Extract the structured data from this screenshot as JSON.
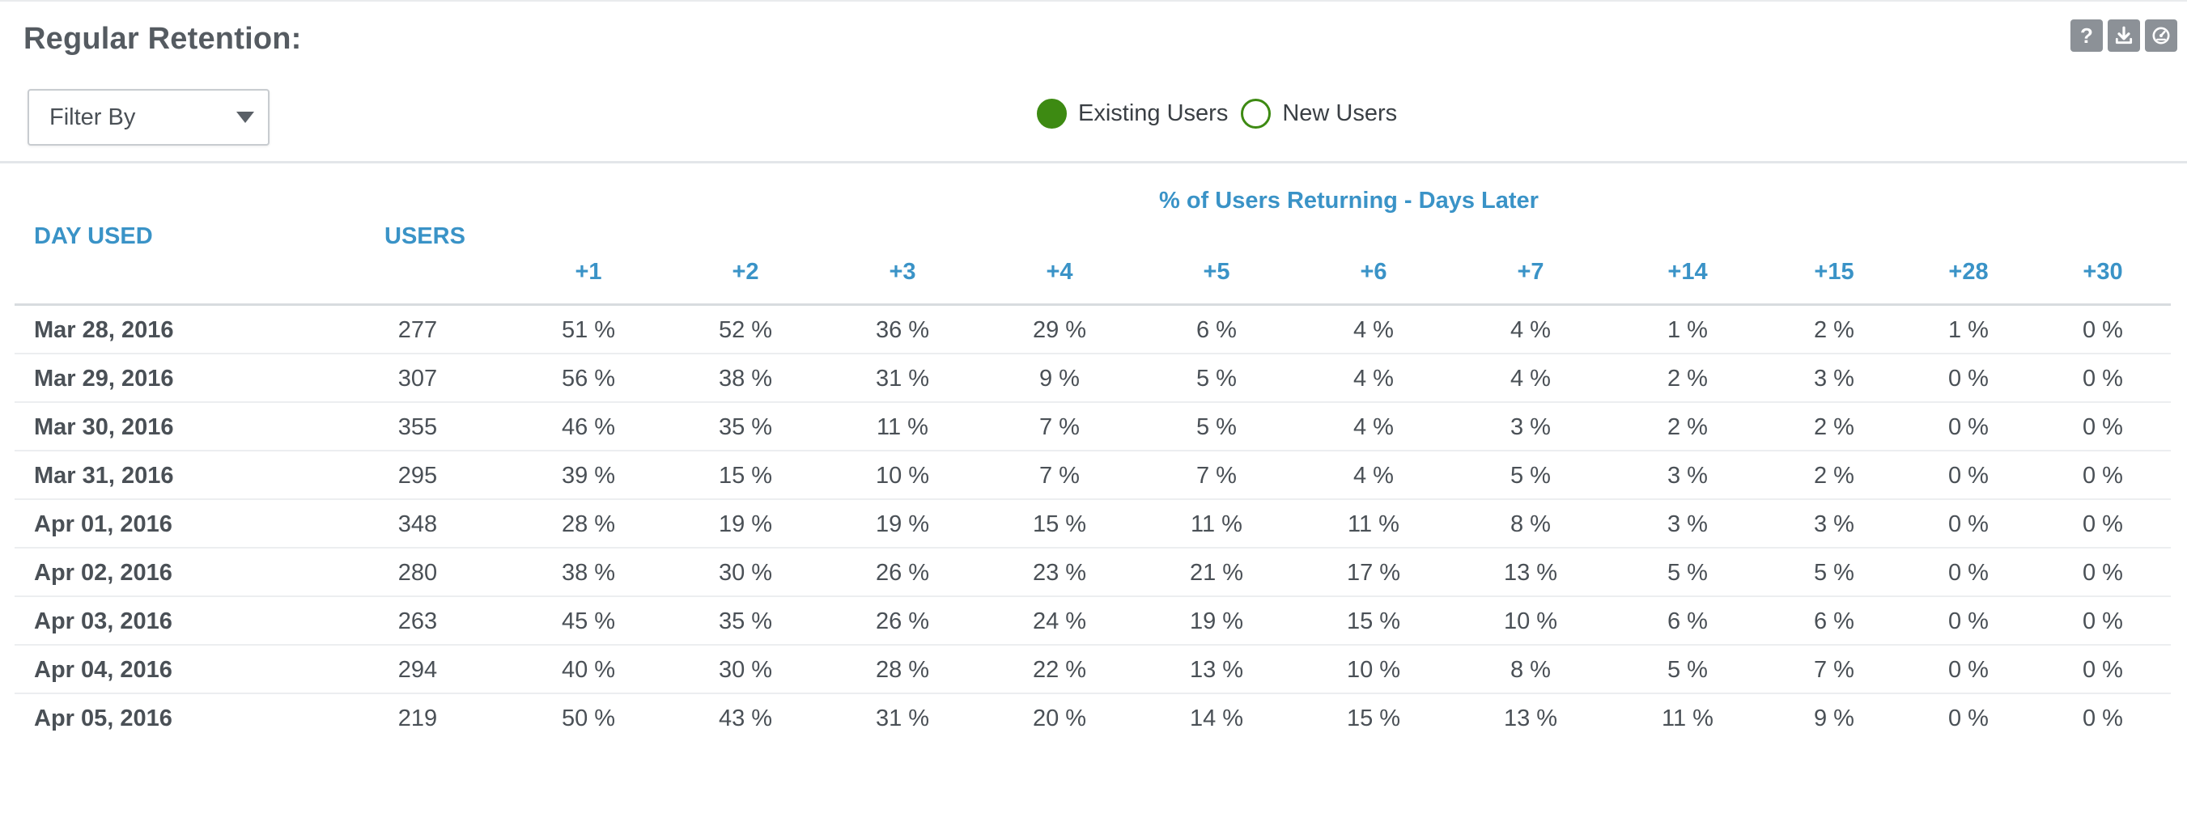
{
  "title": "Regular Retention:",
  "toolbar": {
    "help_label": "?",
    "icons": [
      "help-icon",
      "download-icon",
      "dashboard-icon"
    ]
  },
  "filter": {
    "label": "Filter By"
  },
  "legend": [
    {
      "label": "Existing Users",
      "style": "filled",
      "color": "#3d8a12"
    },
    {
      "label": "New Users",
      "style": "hollow",
      "color": "#3d8a12"
    }
  ],
  "table": {
    "group_header": "% of Users Returning - Days Later",
    "col_day": "DAY USED",
    "col_users": "USERS",
    "day_columns": [
      "+1",
      "+2",
      "+3",
      "+4",
      "+5",
      "+6",
      "+7",
      "+14",
      "+15",
      "+28",
      "+30"
    ],
    "rows": [
      {
        "date": "Mar 28, 2016",
        "users": "277",
        "values": [
          "51 %",
          "52 %",
          "36 %",
          "29 %",
          "6 %",
          "4 %",
          "4 %",
          "1 %",
          "2 %",
          "1 %",
          "0 %"
        ]
      },
      {
        "date": "Mar 29, 2016",
        "users": "307",
        "values": [
          "56 %",
          "38 %",
          "31 %",
          "9 %",
          "5 %",
          "4 %",
          "4 %",
          "2 %",
          "3 %",
          "0 %",
          "0 %"
        ]
      },
      {
        "date": "Mar 30, 2016",
        "users": "355",
        "values": [
          "46 %",
          "35 %",
          "11 %",
          "7 %",
          "5 %",
          "4 %",
          "3 %",
          "2 %",
          "2 %",
          "0 %",
          "0 %"
        ]
      },
      {
        "date": "Mar 31, 2016",
        "users": "295",
        "values": [
          "39 %",
          "15 %",
          "10 %",
          "7 %",
          "7 %",
          "4 %",
          "5 %",
          "3 %",
          "2 %",
          "0 %",
          "0 %"
        ]
      },
      {
        "date": "Apr 01, 2016",
        "users": "348",
        "values": [
          "28 %",
          "19 %",
          "19 %",
          "15 %",
          "11 %",
          "11 %",
          "8 %",
          "3 %",
          "3 %",
          "0 %",
          "0 %"
        ]
      },
      {
        "date": "Apr 02, 2016",
        "users": "280",
        "values": [
          "38 %",
          "30 %",
          "26 %",
          "23 %",
          "21 %",
          "17 %",
          "13 %",
          "5 %",
          "5 %",
          "0 %",
          "0 %"
        ]
      },
      {
        "date": "Apr 03, 2016",
        "users": "263",
        "values": [
          "45 %",
          "35 %",
          "26 %",
          "24 %",
          "19 %",
          "15 %",
          "10 %",
          "6 %",
          "6 %",
          "0 %",
          "0 %"
        ]
      },
      {
        "date": "Apr 04, 2016",
        "users": "294",
        "values": [
          "40 %",
          "30 %",
          "28 %",
          "22 %",
          "13 %",
          "10 %",
          "8 %",
          "5 %",
          "7 %",
          "0 %",
          "0 %"
        ]
      },
      {
        "date": "Apr 05, 2016",
        "users": "219",
        "values": [
          "50 %",
          "43 %",
          "31 %",
          "20 %",
          "14 %",
          "15 %",
          "13 %",
          "11 %",
          "9 %",
          "0 %",
          "0 %"
        ]
      }
    ]
  },
  "colors": {
    "accent_blue": "#3a93c7",
    "legend_green": "#3d8a12",
    "tool_gray": "#8c9197"
  }
}
